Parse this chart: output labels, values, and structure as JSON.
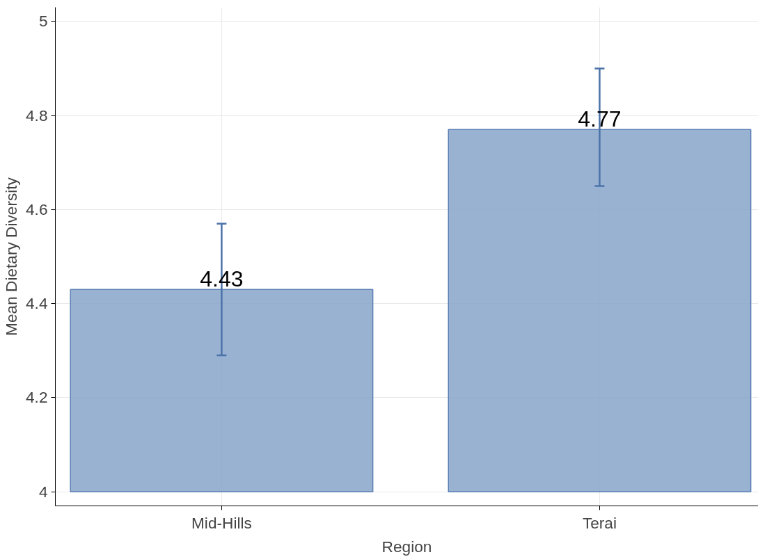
{
  "chart_data": {
    "type": "bar",
    "xlabel": "Region",
    "ylabel": "Mean Dietary Diversity",
    "categories": [
      "Mid-Hills",
      "Terai"
    ],
    "base": [
      4,
      4
    ],
    "values": [
      0.43,
      0.77
    ],
    "value_labels": [
      "4.43",
      "4.77"
    ],
    "errors": [
      [
        4.29,
        4.57
      ],
      [
        4.65,
        4.9
      ]
    ],
    "color": "#88a5ca",
    "ylim": [
      3.97,
      5.03
    ],
    "yticks": [
      4,
      4.2,
      4.4,
      4.6,
      4.8,
      5
    ],
    "grid": true
  }
}
